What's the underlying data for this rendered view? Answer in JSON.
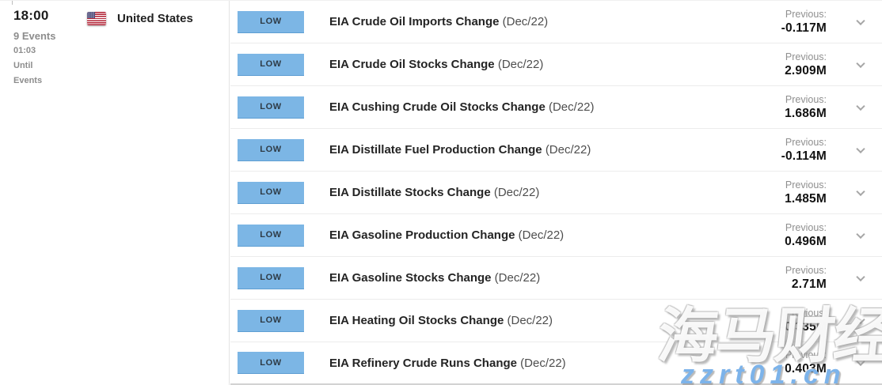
{
  "sidebar": {
    "time": "18:00",
    "events_count": "9 Events",
    "countdown": "01:03",
    "until_label": "Until",
    "events_label": "Events",
    "country": "United States",
    "flag_icon": "us-flag"
  },
  "events": [
    {
      "impact": "LOW",
      "title": "EIA Crude Oil Imports Change",
      "period": "(Dec/22)",
      "previous_label": "Previous:",
      "previous_value": "-0.117M"
    },
    {
      "impact": "LOW",
      "title": "EIA Crude Oil Stocks Change",
      "period": "(Dec/22)",
      "previous_label": "Previous:",
      "previous_value": "2.909M"
    },
    {
      "impact": "LOW",
      "title": "EIA Cushing Crude Oil Stocks Change",
      "period": "(Dec/22)",
      "previous_label": "Previous:",
      "previous_value": "1.686M"
    },
    {
      "impact": "LOW",
      "title": "EIA Distillate Fuel Production Change",
      "period": "(Dec/22)",
      "previous_label": "Previous:",
      "previous_value": "-0.114M"
    },
    {
      "impact": "LOW",
      "title": "EIA Distillate Stocks Change",
      "period": "(Dec/22)",
      "previous_label": "Previous:",
      "previous_value": "1.485M"
    },
    {
      "impact": "LOW",
      "title": "EIA Gasoline Production Change",
      "period": "(Dec/22)",
      "previous_label": "Previous:",
      "previous_value": "0.496M"
    },
    {
      "impact": "LOW",
      "title": "EIA Gasoline Stocks Change",
      "period": "(Dec/22)",
      "previous_label": "Previous:",
      "previous_value": "2.71M"
    },
    {
      "impact": "LOW",
      "title": "EIA Heating Oil Stocks Change",
      "period": "(Dec/22)",
      "previous_label": "Previous:",
      "previous_value": "-0.335M"
    },
    {
      "impact": "LOW",
      "title": "EIA Refinery Crude Runs Change",
      "period": "(Dec/22)",
      "previous_label": "Previous:",
      "previous_value": "0.403M"
    }
  ],
  "watermark": {
    "cn_text": "海马财经",
    "site_text": "zzrt01.cn"
  },
  "colors": {
    "impact_low_bg": "#7cb6e5",
    "impact_low_border": "#5e9ed2",
    "watermark_blue": "#7cb3ea"
  }
}
